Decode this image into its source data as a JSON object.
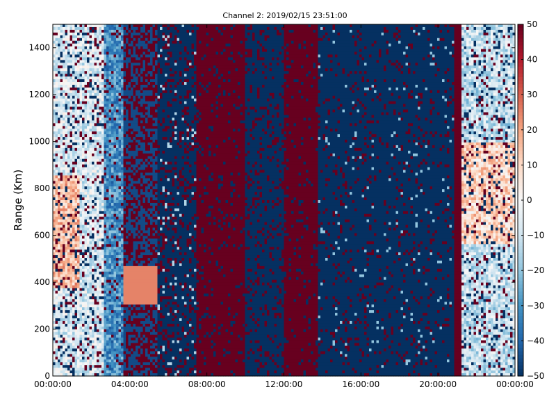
{
  "chart_data": {
    "type": "heatmap",
    "title": "Channel 2: 2019/02/15 23:51:00",
    "xlabel": "",
    "ylabel": "Range (Km)",
    "x_tick_labels": [
      "00:00:00",
      "04:00:00",
      "08:00:00",
      "12:00:00",
      "16:00:00",
      "20:00:00",
      "00:00:00"
    ],
    "x_tick_hours": [
      0,
      4,
      8,
      12,
      16,
      20,
      24
    ],
    "xlim_hours": [
      0,
      24
    ],
    "y_ticks": [
      0,
      200,
      400,
      600,
      800,
      1000,
      1200,
      1400
    ],
    "ylim": [
      0,
      1500
    ],
    "colorbar": {
      "ticks": [
        50,
        40,
        30,
        20,
        10,
        0,
        -10,
        -20,
        -30,
        -40,
        -50
      ],
      "tick_labels": [
        "50",
        "40",
        "30",
        "20",
        "10",
        "0",
        "−10",
        "−20",
        "−30",
        "−40",
        "−50"
      ],
      "range": [
        -50,
        50
      ],
      "colormap": "RdBu_r",
      "colors": [
        "#053061",
        "#2166ac",
        "#4393c3",
        "#92c5de",
        "#d1e5f0",
        "#f7f7f7",
        "#fddbc7",
        "#f4a582",
        "#d6604d",
        "#b2182b",
        "#67001f"
      ]
    },
    "grid": false
  }
}
